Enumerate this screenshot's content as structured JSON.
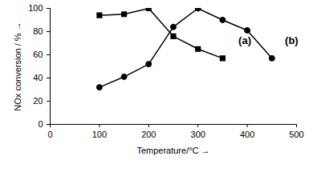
{
  "chart_data": {
    "type": "line",
    "x_label": "Temperature/°C",
    "y_label": "NOx conversion / %",
    "x": [
      100,
      150,
      200,
      250,
      300,
      350,
      400,
      450
    ],
    "series": [
      {
        "name": "(a)",
        "color": "#000000",
        "marker": "square",
        "label_x": 395,
        "label_y": 72,
        "values": [
          94,
          95,
          100,
          76,
          65,
          57,
          null,
          null
        ]
      },
      {
        "name": "(b)",
        "color": "#000000",
        "marker": "circle",
        "label_x": 490,
        "label_y": 72,
        "values": [
          32,
          41,
          52,
          84,
          100,
          90,
          81,
          57
        ]
      }
    ],
    "xlim": [
      0,
      500
    ],
    "xticks": [
      0,
      100,
      200,
      300,
      400,
      500
    ],
    "ylim": [
      0,
      100
    ],
    "yticks": [
      0,
      20,
      40,
      60,
      80,
      100
    ],
    "grid": false
  }
}
